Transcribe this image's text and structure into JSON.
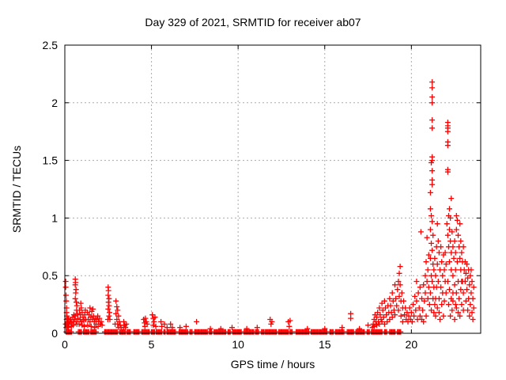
{
  "chart_data": {
    "type": "scatter",
    "title": "Day 329 of 2021, SRMTID for receiver ab07",
    "xlabel": "GPS time / hours",
    "ylabel": "SRMTID / TECUs",
    "xlim": [
      0,
      24
    ],
    "ylim": [
      0,
      2.5
    ],
    "xticks": [
      0,
      5,
      10,
      15,
      20
    ],
    "xtick_labels": [
      "0",
      "5",
      "10",
      "15",
      "20"
    ],
    "yticks": [
      0,
      0.5,
      1,
      1.5,
      2,
      2.5
    ],
    "ytick_labels": [
      "0",
      "0.5",
      "1",
      "1.5",
      "2",
      "2.5"
    ],
    "grid": true,
    "legend": "none",
    "marker": {
      "shape": "plus",
      "color": "#ff0000",
      "size": 7,
      "stroke": 1.3
    },
    "colors": {
      "frame": "#000000",
      "grid": "#ababab",
      "background": "#ffffff"
    },
    "baseline_band": {
      "y": 0.012,
      "step": 0.06,
      "segments": [
        [
          0.08,
          0.42
        ],
        [
          0.78,
          1.0
        ],
        [
          1.08,
          1.38
        ],
        [
          1.5,
          1.82
        ],
        [
          2.3,
          3.05
        ],
        [
          3.18,
          3.52
        ],
        [
          3.6,
          3.78
        ],
        [
          3.98,
          4.32
        ],
        [
          4.45,
          4.88
        ],
        [
          5.0,
          5.18
        ],
        [
          5.28,
          5.62
        ],
        [
          5.72,
          5.8
        ],
        [
          5.9,
          6.42
        ],
        [
          6.6,
          7.12
        ],
        [
          7.22,
          7.38
        ],
        [
          7.5,
          8.22
        ],
        [
          8.35,
          8.52
        ],
        [
          8.62,
          9.32
        ],
        [
          9.42,
          9.58
        ],
        [
          9.7,
          10.22
        ],
        [
          10.35,
          10.92
        ],
        [
          11.0,
          11.22
        ],
        [
          11.35,
          11.48
        ],
        [
          11.55,
          12.22
        ],
        [
          12.35,
          12.92
        ],
        [
          13.0,
          13.12
        ],
        [
          13.35,
          14.12
        ],
        [
          14.22,
          15.12
        ],
        [
          15.3,
          15.52
        ],
        [
          15.62,
          16.12
        ],
        [
          16.3,
          16.68
        ],
        [
          16.8,
          17.32
        ],
        [
          17.45,
          17.58
        ],
        [
          17.7,
          18.32
        ],
        [
          18.45,
          18.62
        ],
        [
          18.75,
          19.08
        ],
        [
          19.2,
          19.38
        ]
      ]
    },
    "points": [
      [
        0.05,
        0.45
      ],
      [
        0.05,
        0.4
      ],
      [
        0.07,
        0.33
      ],
      [
        0.08,
        0.28
      ],
      [
        0.1,
        0.22
      ],
      [
        0.1,
        0.18
      ],
      [
        0.12,
        0.15
      ],
      [
        0.1,
        0.12
      ],
      [
        0.15,
        0.1
      ],
      [
        0.05,
        0.08
      ],
      [
        0.12,
        0.08
      ],
      [
        0.2,
        0.09
      ],
      [
        0.18,
        0.13
      ],
      [
        0.22,
        0.12
      ],
      [
        0.08,
        0.05
      ],
      [
        0.15,
        0.06
      ],
      [
        0.25,
        0.08
      ],
      [
        0.3,
        0.1
      ],
      [
        0.2,
        0.05
      ],
      [
        0.35,
        0.12
      ],
      [
        0.4,
        0.09
      ],
      [
        0.45,
        0.14
      ],
      [
        0.5,
        0.1
      ],
      [
        0.38,
        0.06
      ],
      [
        0.48,
        0.07
      ],
      [
        0.55,
        0.12
      ],
      [
        0.52,
        0.16
      ],
      [
        0.6,
        0.47
      ],
      [
        0.62,
        0.44
      ],
      [
        0.6,
        0.42
      ],
      [
        0.65,
        0.38
      ],
      [
        0.63,
        0.35
      ],
      [
        0.6,
        0.3
      ],
      [
        0.66,
        0.27
      ],
      [
        0.7,
        0.24
      ],
      [
        0.68,
        0.2
      ],
      [
        0.72,
        0.17
      ],
      [
        0.6,
        0.15
      ],
      [
        0.75,
        0.13
      ],
      [
        0.65,
        0.1
      ],
      [
        0.7,
        0.08
      ],
      [
        0.85,
        0.2
      ],
      [
        0.9,
        0.16
      ],
      [
        0.95,
        0.22
      ],
      [
        1.0,
        0.18
      ],
      [
        0.88,
        0.12
      ],
      [
        0.95,
        0.1
      ],
      [
        1.05,
        0.14
      ],
      [
        1.1,
        0.11
      ],
      [
        1.15,
        0.16
      ],
      [
        1.2,
        0.12
      ],
      [
        0.82,
        0.08
      ],
      [
        1.0,
        0.07
      ],
      [
        1.12,
        0.06
      ],
      [
        1.18,
        0.2
      ],
      [
        0.92,
        0.26
      ],
      [
        1.3,
        0.18
      ],
      [
        1.35,
        0.12
      ],
      [
        1.4,
        0.16
      ],
      [
        1.45,
        0.1
      ],
      [
        1.5,
        0.14
      ],
      [
        1.55,
        0.19
      ],
      [
        1.6,
        0.12
      ],
      [
        1.65,
        0.15
      ],
      [
        1.7,
        0.1
      ],
      [
        1.75,
        0.13
      ],
      [
        1.8,
        0.08
      ],
      [
        1.85,
        0.12
      ],
      [
        1.9,
        0.15
      ],
      [
        1.95,
        0.1
      ],
      [
        2.0,
        0.13
      ],
      [
        2.05,
        0.08
      ],
      [
        2.1,
        0.1
      ],
      [
        2.15,
        0.07
      ],
      [
        1.32,
        0.07
      ],
      [
        1.52,
        0.06
      ],
      [
        1.72,
        0.05
      ],
      [
        1.92,
        0.06
      ],
      [
        1.45,
        0.22
      ],
      [
        1.62,
        0.21
      ],
      [
        2.5,
        0.4
      ],
      [
        2.52,
        0.37
      ],
      [
        2.5,
        0.33
      ],
      [
        2.55,
        0.3
      ],
      [
        2.52,
        0.27
      ],
      [
        2.55,
        0.24
      ],
      [
        2.5,
        0.21
      ],
      [
        2.58,
        0.18
      ],
      [
        2.55,
        0.15
      ],
      [
        2.6,
        0.12
      ],
      [
        2.48,
        0.12
      ],
      [
        2.95,
        0.28
      ],
      [
        3.0,
        0.23
      ],
      [
        3.05,
        0.2
      ],
      [
        2.95,
        0.17
      ],
      [
        3.1,
        0.15
      ],
      [
        3.0,
        0.12
      ],
      [
        3.15,
        0.1
      ],
      [
        3.05,
        0.08
      ],
      [
        3.2,
        0.07
      ],
      [
        2.9,
        0.08
      ],
      [
        3.25,
        0.05
      ],
      [
        3.1,
        0.05
      ],
      [
        3.4,
        0.1
      ],
      [
        3.45,
        0.07
      ],
      [
        3.5,
        0.05
      ],
      [
        3.55,
        0.08
      ],
      [
        3.38,
        0.05
      ],
      [
        4.55,
        0.12
      ],
      [
        4.6,
        0.09
      ],
      [
        4.65,
        0.13
      ],
      [
        4.7,
        0.1
      ],
      [
        4.75,
        0.08
      ],
      [
        4.62,
        0.06
      ],
      [
        5.05,
        0.16
      ],
      [
        5.1,
        0.13
      ],
      [
        5.15,
        0.1
      ],
      [
        5.2,
        0.14
      ],
      [
        5.1,
        0.07
      ],
      [
        5.25,
        0.06
      ],
      [
        5.55,
        0.1
      ],
      [
        5.6,
        0.06
      ],
      [
        5.75,
        0.08
      ],
      [
        5.9,
        0.05
      ],
      [
        6.1,
        0.08
      ],
      [
        6.2,
        0.05
      ],
      [
        6.65,
        0.05
      ],
      [
        7.0,
        0.06
      ],
      [
        7.6,
        0.1
      ],
      [
        8.4,
        0.04
      ],
      [
        9.0,
        0.04
      ],
      [
        9.65,
        0.05
      ],
      [
        10.5,
        0.04
      ],
      [
        11.1,
        0.05
      ],
      [
        11.85,
        0.12
      ],
      [
        11.9,
        0.08
      ],
      [
        11.95,
        0.1
      ],
      [
        12.9,
        0.1
      ],
      [
        12.95,
        0.06
      ],
      [
        13.0,
        0.11
      ],
      [
        14.0,
        0.04
      ],
      [
        15.0,
        0.04
      ],
      [
        16.0,
        0.05
      ],
      [
        16.5,
        0.17
      ],
      [
        16.5,
        0.13
      ],
      [
        17.0,
        0.04
      ],
      [
        17.5,
        0.07
      ],
      [
        17.75,
        0.05
      ],
      [
        17.8,
        0.08
      ],
      [
        17.85,
        0.12
      ],
      [
        17.9,
        0.16
      ],
      [
        17.85,
        0.06
      ],
      [
        17.95,
        0.1
      ],
      [
        18.0,
        0.14
      ],
      [
        18.05,
        0.18
      ],
      [
        18.0,
        0.07
      ],
      [
        18.1,
        0.1
      ],
      [
        18.15,
        0.22
      ],
      [
        18.2,
        0.16
      ],
      [
        18.15,
        0.08
      ],
      [
        18.25,
        0.12
      ],
      [
        18.3,
        0.26
      ],
      [
        18.35,
        0.2
      ],
      [
        18.3,
        0.1
      ],
      [
        18.4,
        0.14
      ],
      [
        18.45,
        0.28
      ],
      [
        18.5,
        0.22
      ],
      [
        18.45,
        0.08
      ],
      [
        18.55,
        0.16
      ],
      [
        18.6,
        0.1
      ],
      [
        18.65,
        0.24
      ],
      [
        18.7,
        0.18
      ],
      [
        18.75,
        0.3
      ],
      [
        18.8,
        0.24
      ],
      [
        18.75,
        0.12
      ],
      [
        18.85,
        0.18
      ],
      [
        18.9,
        0.35
      ],
      [
        18.95,
        0.28
      ],
      [
        18.9,
        0.14
      ],
      [
        19.0,
        0.2
      ],
      [
        19.05,
        0.42
      ],
      [
        19.1,
        0.3
      ],
      [
        19.05,
        0.16
      ],
      [
        19.15,
        0.24
      ],
      [
        19.2,
        0.38
      ],
      [
        19.25,
        0.45
      ],
      [
        19.25,
        0.2
      ],
      [
        19.3,
        0.52
      ],
      [
        19.3,
        0.32
      ],
      [
        19.35,
        0.58
      ],
      [
        19.35,
        0.42
      ],
      [
        19.4,
        0.28
      ],
      [
        19.4,
        0.15
      ],
      [
        19.45,
        0.35
      ],
      [
        19.5,
        0.22
      ],
      [
        19.5,
        0.1
      ],
      [
        19.55,
        0.28
      ],
      [
        19.6,
        0.16
      ],
      [
        19.65,
        0.22
      ],
      [
        19.7,
        0.12
      ],
      [
        19.75,
        0.18
      ],
      [
        19.8,
        0.1
      ],
      [
        19.85,
        0.15
      ],
      [
        19.9,
        0.22
      ],
      [
        19.95,
        0.12
      ],
      [
        20.0,
        0.18
      ],
      [
        20.05,
        0.1
      ],
      [
        20.1,
        0.25
      ],
      [
        20.15,
        0.15
      ],
      [
        20.2,
        0.32
      ],
      [
        20.25,
        0.2
      ],
      [
        20.3,
        0.45
      ],
      [
        20.3,
        0.28
      ],
      [
        20.35,
        0.12
      ],
      [
        20.4,
        0.35
      ],
      [
        20.45,
        0.22
      ],
      [
        20.5,
        0.4
      ],
      [
        20.5,
        0.15
      ],
      [
        20.55,
        0.88
      ],
      [
        20.6,
        0.3
      ],
      [
        20.65,
        0.2
      ],
      [
        20.7,
        0.42
      ],
      [
        20.75,
        0.28
      ],
      [
        20.8,
        0.5
      ],
      [
        20.8,
        0.35
      ],
      [
        20.85,
        0.62
      ],
      [
        20.9,
        0.83
      ],
      [
        20.9,
        0.45
      ],
      [
        20.95,
        0.55
      ],
      [
        20.95,
        0.3
      ],
      [
        21.0,
        0.68
      ],
      [
        21.0,
        0.4
      ],
      [
        20.6,
        0.12
      ],
      [
        20.7,
        0.1
      ],
      [
        20.85,
        0.15
      ],
      [
        21.05,
        0.25
      ],
      [
        21.2,
        2.18
      ],
      [
        21.2,
        2.13
      ],
      [
        21.2,
        2.05
      ],
      [
        21.2,
        2.0
      ],
      [
        21.2,
        1.85
      ],
      [
        21.2,
        1.78
      ],
      [
        21.2,
        1.53
      ],
      [
        21.2,
        1.5
      ],
      [
        21.15,
        1.48
      ],
      [
        21.2,
        1.41
      ],
      [
        21.2,
        1.33
      ],
      [
        21.2,
        1.29
      ],
      [
        21.1,
        1.22
      ],
      [
        21.1,
        1.08
      ],
      [
        21.15,
        1.02
      ],
      [
        21.2,
        0.97
      ],
      [
        21.1,
        0.9
      ],
      [
        21.25,
        0.85
      ],
      [
        21.15,
        0.78
      ],
      [
        21.2,
        0.72
      ],
      [
        21.1,
        0.65
      ],
      [
        21.25,
        0.6
      ],
      [
        21.3,
        0.55
      ],
      [
        21.15,
        0.5
      ],
      [
        21.2,
        0.45
      ],
      [
        21.3,
        0.4
      ],
      [
        21.1,
        0.35
      ],
      [
        21.25,
        0.3
      ],
      [
        21.35,
        0.25
      ],
      [
        21.15,
        0.2
      ],
      [
        21.3,
        0.18
      ],
      [
        21.4,
        0.3
      ],
      [
        21.4,
        0.5
      ],
      [
        21.35,
        0.65
      ],
      [
        21.4,
        0.15
      ],
      [
        21.45,
        0.75
      ],
      [
        21.5,
        0.95
      ],
      [
        21.55,
        0.8
      ],
      [
        21.6,
        0.7
      ],
      [
        21.5,
        0.6
      ],
      [
        21.65,
        0.55
      ],
      [
        21.7,
        0.75
      ],
      [
        21.55,
        0.45
      ],
      [
        21.7,
        0.4
      ],
      [
        21.75,
        0.62
      ],
      [
        21.8,
        0.5
      ],
      [
        21.6,
        0.3
      ],
      [
        21.75,
        0.25
      ],
      [
        21.85,
        0.68
      ],
      [
        21.9,
        0.55
      ],
      [
        21.8,
        0.35
      ],
      [
        21.95,
        0.45
      ],
      [
        21.9,
        0.28
      ],
      [
        21.85,
        0.15
      ],
      [
        21.6,
        0.18
      ],
      [
        21.95,
        0.7
      ],
      [
        22.0,
        0.6
      ],
      [
        21.5,
        0.22
      ],
      [
        21.65,
        0.12
      ],
      [
        22.0,
        0.35
      ],
      [
        21.45,
        0.4
      ],
      [
        22.1,
        1.83
      ],
      [
        22.1,
        1.8
      ],
      [
        22.1,
        1.78
      ],
      [
        22.1,
        1.75
      ],
      [
        22.1,
        1.66
      ],
      [
        22.1,
        1.63
      ],
      [
        22.1,
        1.42
      ],
      [
        22.1,
        1.4
      ],
      [
        22.3,
        1.17
      ],
      [
        22.2,
        1.08
      ],
      [
        22.15,
        1.02
      ],
      [
        22.25,
        1.0
      ],
      [
        22.05,
        0.95
      ],
      [
        22.1,
        0.85
      ],
      [
        22.2,
        0.9
      ],
      [
        22.15,
        0.75
      ],
      [
        22.25,
        0.8
      ],
      [
        22.3,
        0.7
      ],
      [
        22.2,
        0.62
      ],
      [
        22.35,
        0.88
      ],
      [
        22.4,
        0.75
      ],
      [
        22.3,
        0.55
      ],
      [
        22.45,
        0.65
      ],
      [
        22.5,
        0.8
      ],
      [
        22.4,
        0.5
      ],
      [
        22.55,
        0.7
      ],
      [
        22.6,
        1.02
      ],
      [
        22.6,
        0.9
      ],
      [
        22.65,
        0.98
      ],
      [
        22.7,
        0.85
      ],
      [
        22.55,
        0.55
      ],
      [
        22.65,
        0.62
      ],
      [
        22.75,
        0.75
      ],
      [
        22.8,
        0.95
      ],
      [
        22.8,
        0.65
      ],
      [
        22.85,
        0.8
      ],
      [
        22.9,
        0.7
      ],
      [
        22.85,
        0.55
      ],
      [
        22.95,
        0.62
      ],
      [
        23.0,
        0.75
      ],
      [
        22.9,
        0.45
      ],
      [
        22.1,
        0.45
      ],
      [
        22.2,
        0.38
      ],
      [
        22.3,
        0.3
      ],
      [
        22.4,
        0.35
      ],
      [
        22.5,
        0.42
      ],
      [
        22.6,
        0.35
      ],
      [
        22.7,
        0.45
      ],
      [
        22.75,
        0.3
      ],
      [
        22.85,
        0.38
      ],
      [
        22.95,
        0.45
      ],
      [
        22.15,
        0.25
      ],
      [
        22.35,
        0.2
      ],
      [
        22.55,
        0.25
      ],
      [
        22.7,
        0.18
      ],
      [
        22.9,
        0.25
      ],
      [
        23.0,
        0.35
      ],
      [
        22.25,
        0.15
      ],
      [
        22.5,
        0.12
      ],
      [
        22.8,
        0.15
      ],
      [
        23.0,
        0.2
      ],
      [
        22.6,
        0.22
      ],
      [
        22.4,
        0.28
      ],
      [
        23.05,
        0.55
      ],
      [
        23.1,
        0.62
      ],
      [
        23.1,
        0.45
      ],
      [
        23.15,
        0.52
      ],
      [
        23.2,
        0.6
      ],
      [
        23.2,
        0.38
      ],
      [
        23.25,
        0.48
      ],
      [
        23.3,
        0.55
      ],
      [
        23.3,
        0.3
      ],
      [
        23.35,
        0.42
      ],
      [
        23.4,
        0.5
      ],
      [
        23.4,
        0.25
      ],
      [
        23.45,
        0.35
      ],
      [
        23.5,
        0.45
      ],
      [
        23.5,
        0.18
      ],
      [
        23.55,
        0.3
      ],
      [
        23.6,
        0.4
      ],
      [
        23.15,
        0.28
      ],
      [
        23.35,
        0.15
      ],
      [
        23.55,
        0.12
      ],
      [
        23.6,
        0.22
      ],
      [
        23.25,
        0.2
      ],
      [
        23.45,
        0.55
      ]
    ]
  }
}
